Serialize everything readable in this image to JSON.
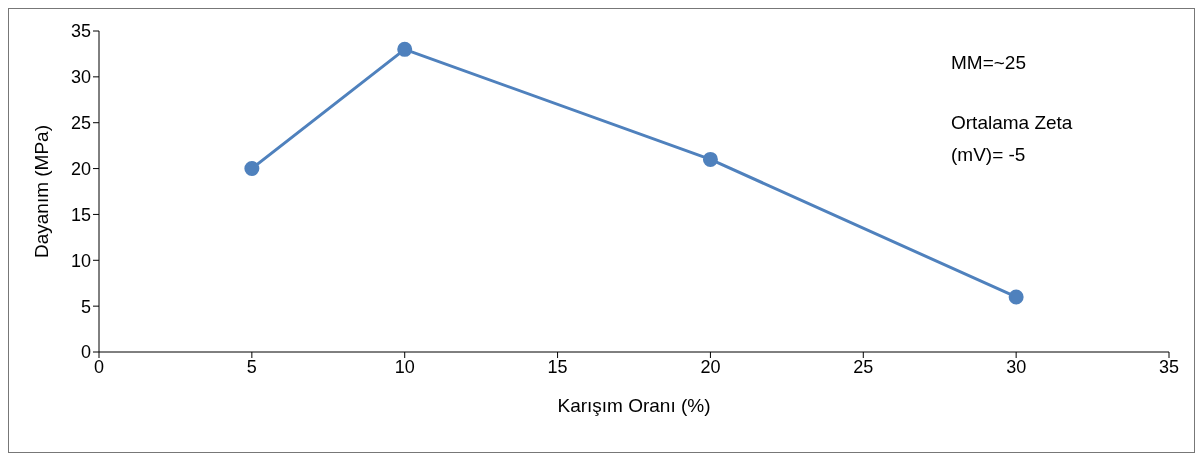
{
  "chart_data": {
    "type": "line",
    "xlabel": "Karışım Oranı (%)",
    "ylabel": "Dayanım (MPa)",
    "x": [
      5,
      10,
      20,
      30
    ],
    "series": [
      {
        "color": "#4f81bd",
        "values": [
          20,
          33,
          21,
          6
        ]
      }
    ],
    "xlim": [
      0,
      35
    ],
    "xticks": [
      0,
      5,
      10,
      15,
      20,
      25,
      30,
      35
    ],
    "ylim": [
      0,
      35
    ],
    "yticks": [
      0,
      5,
      10,
      15,
      20,
      25,
      30,
      35
    ],
    "grid": false,
    "legend": false,
    "marker": "circle",
    "line_style": "solid",
    "annotations": [
      "MM=~25",
      "Ortalama Zeta (mV)= -5"
    ]
  }
}
